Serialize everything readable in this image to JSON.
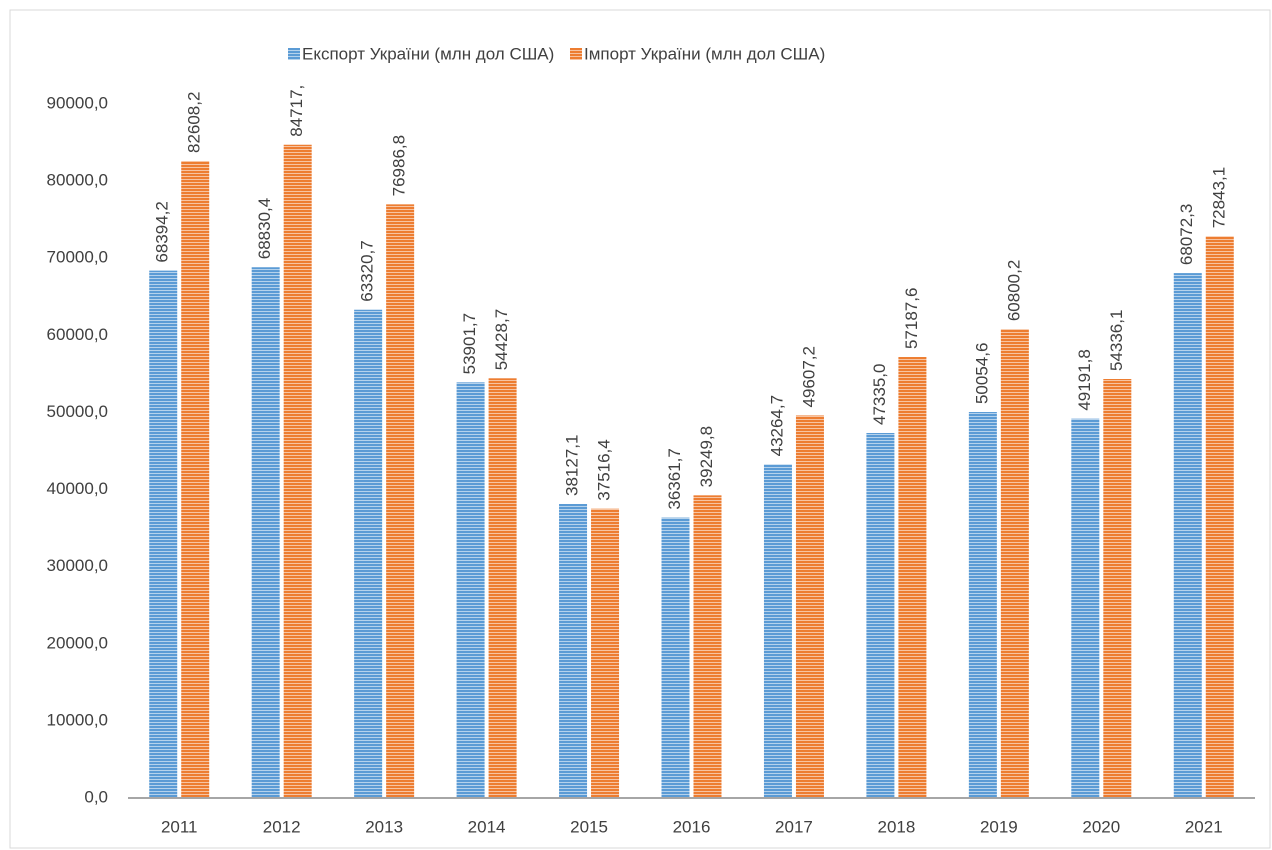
{
  "chart_data": {
    "type": "bar",
    "categories": [
      "2011",
      "2012",
      "2013",
      "2014",
      "2015",
      "2016",
      "2017",
      "2018",
      "2019",
      "2020",
      "2021"
    ],
    "series": [
      {
        "name": "Експорт України (млн дол США)",
        "color": "#5b9bd5",
        "values": [
          68394.2,
          68830.4,
          63320.7,
          53901.7,
          38127.1,
          36361.7,
          43264.7,
          47335.0,
          50054.6,
          49191.8,
          68072.3
        ],
        "value_labels": [
          "68394,2",
          "68830,4",
          "63320,7",
          "53901,7",
          "38127,1",
          "36361,7",
          "43264,7",
          "47335,0",
          "50054,6",
          "49191,8",
          "68072,3"
        ]
      },
      {
        "name": "Імпорт України (млн дол США)",
        "color": "#ed7d31",
        "values": [
          82608.2,
          84717,
          76986.8,
          54428.7,
          37516.4,
          39249.8,
          49607.2,
          57187.6,
          60800.2,
          54336.1,
          72843.1
        ],
        "value_labels": [
          "82608,2",
          "84717,",
          "76986,8",
          "54428,7",
          "37516,4",
          "39249,8",
          "49607,2",
          "57187,6",
          "60800,2",
          "54336,1",
          "72843,1"
        ]
      }
    ],
    "ylim": [
      0,
      90000
    ],
    "yticks": [
      {
        "value": 0,
        "label": "0,0"
      },
      {
        "value": 10000,
        "label": "10000,0"
      },
      {
        "value": 20000,
        "label": "20000,0"
      },
      {
        "value": 30000,
        "label": "30000,0"
      },
      {
        "value": 40000,
        "label": "40000,0"
      },
      {
        "value": 50000,
        "label": "50000,0"
      },
      {
        "value": 60000,
        "label": "60000,0"
      },
      {
        "value": 70000,
        "label": "70000,0"
      },
      {
        "value": 80000,
        "label": "80000,0"
      },
      {
        "value": 90000,
        "label": "90000,0"
      }
    ],
    "legend": "top",
    "grid": false,
    "pattern": "horizontal-stripes"
  }
}
